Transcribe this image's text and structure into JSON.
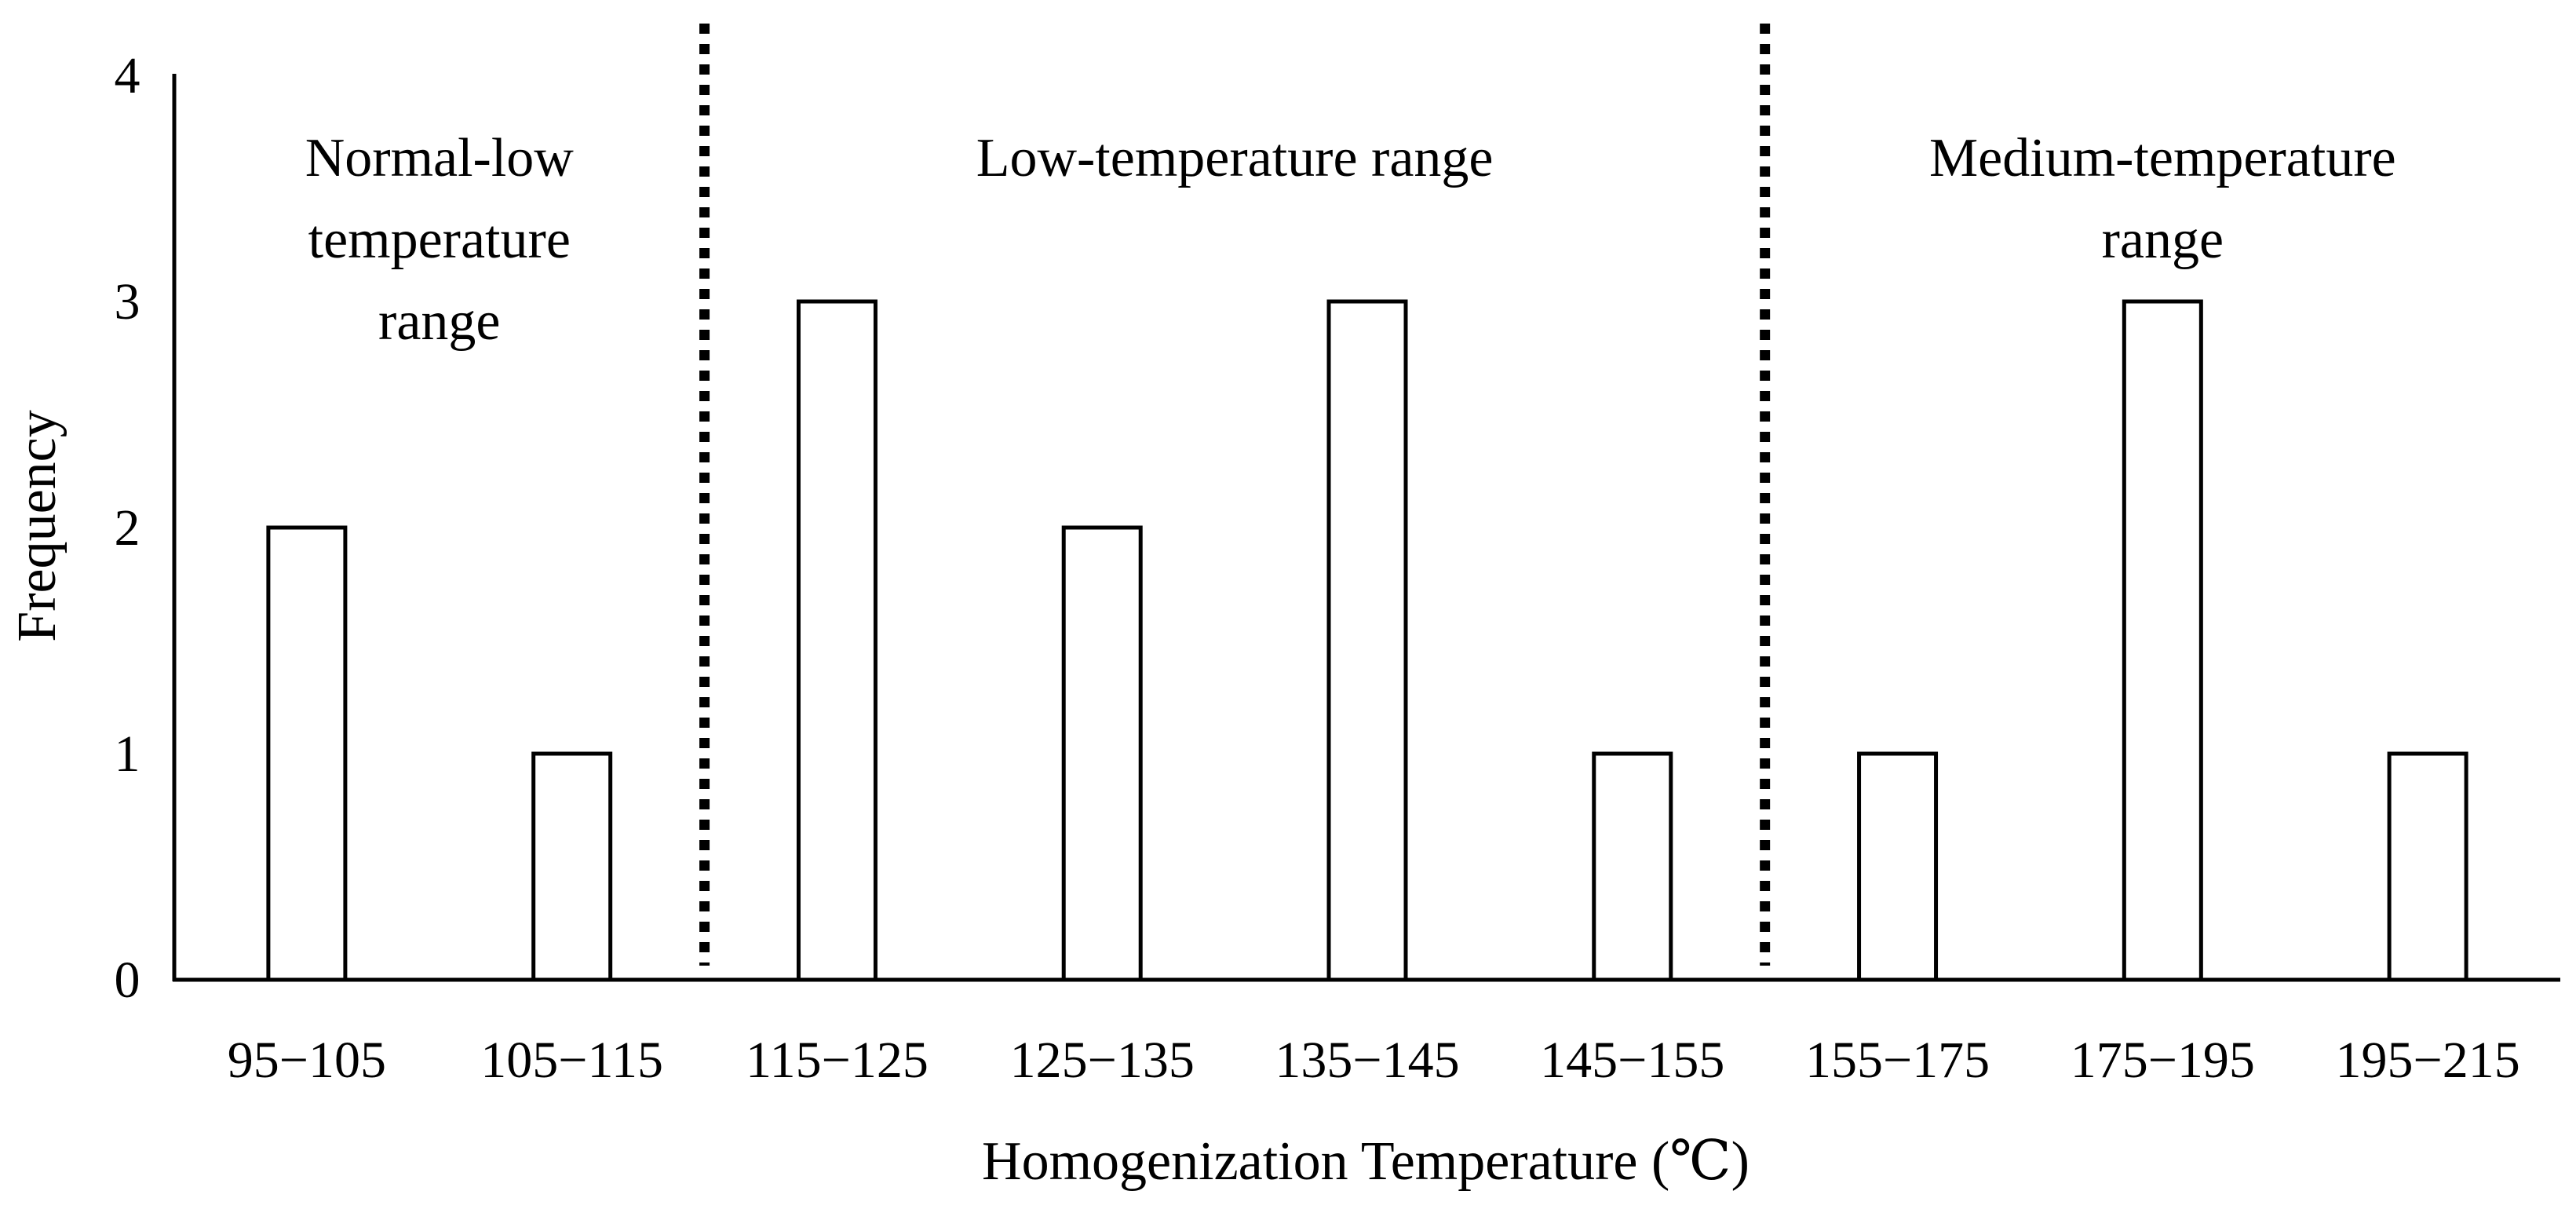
{
  "chart_data": {
    "type": "bar",
    "categories": [
      "95−105",
      "105−115",
      "115−125",
      "125−135",
      "135−145",
      "145−155",
      "155−175",
      "175−195",
      "195−215"
    ],
    "values": [
      2,
      1,
      3,
      2,
      3,
      1,
      1,
      3,
      1
    ],
    "xlabel": "Homogenization Temperature (℃)",
    "ylabel": "Frequency",
    "ylim": [
      0,
      4
    ],
    "yticks": [
      "0",
      "1",
      "2",
      "3",
      "4"
    ],
    "grid": false,
    "legend": "none",
    "bar_fill": "#ffffff",
    "bar_stroke": "#000000",
    "divider_lines_after_categories": [
      2,
      6
    ],
    "range_labels": [
      {
        "lines": [
          "Normal-low",
          "temperature",
          "range"
        ],
        "span": [
          0,
          2
        ]
      },
      {
        "lines": [
          "Low-temperature range"
        ],
        "span": [
          2,
          6
        ]
      },
      {
        "lines": [
          "Medium-temperature",
          "range"
        ],
        "span": [
          6,
          9
        ]
      }
    ]
  }
}
